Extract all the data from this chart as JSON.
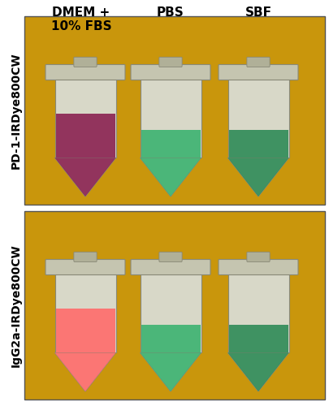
{
  "col_labels": [
    "DMEM +\n10% FBS",
    "PBS",
    "SBF"
  ],
  "row_labels": [
    "PD-1-IRDye800CW",
    "IgG2a-IRDye800CW"
  ],
  "col_label_fontsize": 11,
  "row_label_fontsize": 10,
  "bg_color": "#ffffff",
  "photo_bg": "#C9960C",
  "tube_colors_row0": [
    "#8B2252",
    "#3CB371",
    "#2E8B57"
  ],
  "tube_colors_row1": [
    "#FF6B6B",
    "#3CB371",
    "#2E8B57"
  ],
  "tube_body_color": "#D8D8C8",
  "tube_liquid_alpha": 0.9
}
